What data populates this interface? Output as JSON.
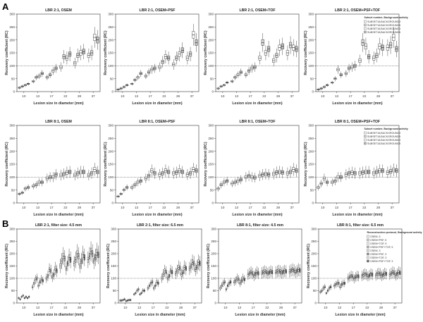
{
  "sections": [
    {
      "label": "A"
    },
    {
      "label": "B"
    }
  ],
  "chart_data": [
    {
      "type": "box",
      "section": "A",
      "title": "LBR 2:1, OSEM",
      "xlabel": "Lesion size in diameter (mm)",
      "ylabel": "Recovery coefficient (RC)",
      "categories": [
        "10",
        "13",
        "17",
        "22",
        "28",
        "37"
      ],
      "ylim": [
        0,
        300
      ],
      "yticks": [
        0,
        50,
        100,
        150,
        200,
        250,
        300
      ],
      "reference_line": 100,
      "series_medians": [
        [
          15,
          20,
          25,
          30
        ],
        [
          40,
          55,
          60,
          70
        ],
        [
          55,
          65,
          80,
          90
        ],
        [
          95,
          135,
          130,
          145
        ],
        [
          110,
          140,
          150,
          155
        ],
        [
          140,
          150,
          210,
          200
        ]
      ]
    },
    {
      "type": "box",
      "section": "A",
      "title": "LBR 2:1, OSEM+PSF",
      "xlabel": "Lesion size in diameter (mm)",
      "ylabel": "Recovery coefficient (RC)",
      "categories": [
        "10",
        "13",
        "17",
        "22",
        "28",
        "37"
      ],
      "ylim": [
        0,
        300
      ],
      "yticks": [
        0,
        50,
        100,
        150,
        200,
        250,
        300
      ],
      "reference_line": 100,
      "series_medians": [
        [
          8,
          12,
          18,
          25
        ],
        [
          30,
          45,
          55,
          70
        ],
        [
          60,
          75,
          85,
          90
        ],
        [
          95,
          115,
          135,
          130
        ],
        [
          105,
          130,
          145,
          160
        ],
        [
          130,
          145,
          220,
          190
        ]
      ]
    },
    {
      "type": "box",
      "section": "A",
      "title": "LBR 2:1, OSEM+TOF",
      "xlabel": "Lesion size in diameter (mm)",
      "ylabel": "Recovery coefficient (RC)",
      "categories": [
        "10",
        "13",
        "17",
        "22",
        "28",
        "37"
      ],
      "ylim": [
        0,
        300
      ],
      "yticks": [
        0,
        50,
        100,
        150,
        200,
        250,
        300
      ],
      "reference_line": 100,
      "series_medians": [
        [
          12,
          20,
          25,
          35
        ],
        [
          40,
          55,
          65,
          75
        ],
        [
          65,
          80,
          90,
          95
        ],
        [
          130,
          190,
          150,
          165
        ],
        [
          120,
          140,
          170,
          175
        ],
        [
          150,
          180,
          170,
          165
        ]
      ]
    },
    {
      "type": "box",
      "section": "A",
      "title": "LBR 2:1, OSEM+PSF+TOF",
      "xlabel": "Lesion size in diameter (mm)",
      "ylabel": "Recovery coefficient (RC)",
      "categories": [
        "10",
        "13",
        "17",
        "22",
        "28",
        "37"
      ],
      "ylim": [
        0,
        300
      ],
      "yticks": [
        0,
        50,
        100,
        150,
        200,
        250,
        300
      ],
      "reference_line": 100,
      "series_medians": [
        [
          8,
          12,
          18,
          25
        ],
        [
          35,
          50,
          85,
          65
        ],
        [
          70,
          90,
          95,
          100
        ],
        [
          120,
          190,
          175,
          135
        ],
        [
          130,
          140,
          175,
          170
        ],
        [
          170,
          180,
          210,
          165
        ]
      ],
      "legend_title": "Subset number, Background activity",
      "legend": [
        "SUBSET18,BACKGROUND3",
        "SUBSET18,BACKGROUND5",
        "SUBSET18,BACKGROUND3",
        "SUBSET18,BACKGROUND5"
      ]
    },
    {
      "type": "box",
      "section": "A",
      "title": "LBR 8:1, OSEM",
      "xlabel": "Lesion size in diameter (mm)",
      "ylabel": "Recovery coefficient (RC)",
      "categories": [
        "10",
        "13",
        "17",
        "22",
        "28",
        "37"
      ],
      "ylim": [
        0,
        300
      ],
      "yticks": [
        0,
        50,
        100,
        150,
        200,
        250,
        300
      ],
      "reference_line": 100,
      "series_medians": [
        [
          35,
          40,
          55,
          60
        ],
        [
          65,
          70,
          80,
          80
        ],
        [
          95,
          100,
          100,
          110
        ],
        [
          108,
          112,
          118,
          120
        ],
        [
          108,
          115,
          120,
          120
        ],
        [
          108,
          115,
          130,
          120
        ]
      ]
    },
    {
      "type": "box",
      "section": "A",
      "title": "LBR 8:1, OSEM+PSF",
      "xlabel": "Lesion size in diameter (mm)",
      "ylabel": "Recovery coefficient (RC)",
      "categories": [
        "10",
        "13",
        "17",
        "22",
        "28",
        "37"
      ],
      "ylim": [
        0,
        300
      ],
      "yticks": [
        0,
        50,
        100,
        150,
        200,
        250,
        300
      ],
      "reference_line": 100,
      "series_medians": [
        [
          25,
          35,
          50,
          60
        ],
        [
          60,
          70,
          80,
          85
        ],
        [
          95,
          105,
          125,
          115
        ],
        [
          110,
          115,
          125,
          120
        ],
        [
          115,
          118,
          125,
          120
        ],
        [
          110,
          115,
          130,
          125
        ]
      ]
    },
    {
      "type": "box",
      "section": "A",
      "title": "LBR 8:1, OSEM+TOF",
      "xlabel": "Lesion size in diameter (mm)",
      "ylabel": "Recovery coefficient (RC)",
      "categories": [
        "10",
        "13",
        "17",
        "22",
        "28",
        "37"
      ],
      "ylim": [
        0,
        300
      ],
      "yticks": [
        0,
        50,
        100,
        150,
        200,
        250,
        300
      ],
      "reference_line": 100,
      "series_medians": [
        [
          55,
          70,
          80,
          85
        ],
        [
          75,
          80,
          85,
          90
        ],
        [
          100,
          105,
          100,
          98
        ],
        [
          105,
          110,
          112,
          110
        ],
        [
          112,
          118,
          120,
          118
        ],
        [
          115,
          120,
          130,
          125
        ]
      ]
    },
    {
      "type": "box",
      "section": "A",
      "title": "LBR 8:1, OSEM+PSF+TOF",
      "xlabel": "Lesion size in diameter (mm)",
      "ylabel": "Recovery coefficient (RC)",
      "categories": [
        "10",
        "13",
        "17",
        "22",
        "28",
        "37"
      ],
      "ylim": [
        0,
        300
      ],
      "yticks": [
        0,
        50,
        100,
        150,
        200,
        250,
        300
      ],
      "reference_line": 100,
      "series_medians": [
        [
          60,
          75,
          95,
          80
        ],
        [
          80,
          85,
          100,
          100
        ],
        [
          110,
          115,
          118,
          115
        ],
        [
          115,
          118,
          120,
          120
        ],
        [
          115,
          120,
          125,
          125
        ],
        [
          118,
          122,
          128,
          125
        ]
      ],
      "legend_title": "Subset number, Background activity",
      "legend": [
        "SUBSET18,BACKGROUND3",
        "SUBSET18,BACKGROUND5",
        "SUBSET18,BACKGROUND3",
        "SUBSET18,BACKGROUND5"
      ]
    },
    {
      "type": "box",
      "section": "B",
      "title": "LBR 2:1, filter size: 4.5 mm",
      "xlabel": "Lesion size in diameter (mm)",
      "ylabel": "Recovery coefficient (RC)",
      "categories": [
        "10",
        "13",
        "17",
        "22",
        "28",
        "37"
      ],
      "ylim": [
        0,
        300
      ],
      "yticks": [
        0,
        50,
        100,
        150,
        200,
        250,
        300
      ],
      "reference_line": 100,
      "series_medians": [
        [
          20,
          15,
          25,
          30,
          20,
          25,
          20,
          25
        ],
        [
          65,
          80,
          95,
          100,
          70,
          85,
          95,
          90
        ],
        [
          100,
          110,
          135,
          130,
          105,
          115,
          140,
          130
        ],
        [
          150,
          170,
          190,
          180,
          140,
          160,
          185,
          175
        ],
        [
          160,
          175,
          200,
          190,
          150,
          170,
          195,
          185
        ],
        [
          175,
          190,
          210,
          200,
          170,
          185,
          205,
          195
        ]
      ]
    },
    {
      "type": "box",
      "section": "B",
      "title": "LBR 2:1, filter size: 6.5 mm",
      "xlabel": "Lesion size in diameter (mm)",
      "ylabel": "Recovery coefficient (RC)",
      "categories": [
        "10",
        "13",
        "17",
        "22",
        "28",
        "37"
      ],
      "ylim": [
        0,
        300
      ],
      "yticks": [
        0,
        50,
        100,
        150,
        200,
        250,
        300
      ],
      "reference_line": 100,
      "series_medians": [
        [
          10,
          10,
          12,
          15,
          8,
          10,
          12,
          12
        ],
        [
          35,
          40,
          50,
          55,
          35,
          40,
          50,
          50
        ],
        [
          60,
          70,
          80,
          85,
          60,
          70,
          85,
          80
        ],
        [
          100,
          115,
          130,
          125,
          100,
          110,
          130,
          125
        ],
        [
          120,
          130,
          145,
          140,
          115,
          125,
          145,
          140
        ],
        [
          140,
          150,
          165,
          160,
          135,
          145,
          165,
          160
        ]
      ]
    },
    {
      "type": "box",
      "section": "B",
      "title": "LBR 8:1, filter size: 4.5 mm",
      "xlabel": "Lesion size in diameter (mm)",
      "ylabel": "Recovery coefficient (RC)",
      "categories": [
        "10",
        "13",
        "17",
        "22",
        "28",
        "37"
      ],
      "ylim": [
        0,
        300
      ],
      "yticks": [
        0,
        50,
        100,
        150,
        200,
        250,
        300
      ],
      "reference_line": 100,
      "series_medians": [
        [
          60,
          70,
          80,
          85,
          55,
          70,
          80,
          85
        ],
        [
          85,
          90,
          100,
          95,
          80,
          90,
          100,
          95
        ],
        [
          115,
          120,
          125,
          120,
          110,
          118,
          125,
          120
        ],
        [
          122,
          125,
          128,
          125,
          120,
          124,
          128,
          125
        ],
        [
          125,
          128,
          130,
          128,
          122,
          126,
          130,
          128
        ],
        [
          128,
          132,
          135,
          132,
          125,
          130,
          135,
          132
        ]
      ]
    },
    {
      "type": "box",
      "section": "B",
      "title": "LBR 8:1, filter size: 6.5 mm",
      "xlabel": "Lesion size in diameter (mm)",
      "ylabel": "Recovery coefficient (RC)",
      "categories": [
        "10",
        "13",
        "17",
        "22",
        "28",
        "37"
      ],
      "ylim": [
        0,
        300
      ],
      "yticks": [
        0,
        50,
        100,
        150,
        200,
        250,
        300
      ],
      "reference_line": 100,
      "series_medians": [
        [
          45,
          50,
          60,
          65,
          40,
          50,
          60,
          65
        ],
        [
          70,
          75,
          80,
          80,
          65,
          75,
          80,
          80
        ],
        [
          100,
          105,
          110,
          108,
          98,
          105,
          110,
          108
        ],
        [
          110,
          115,
          118,
          115,
          108,
          112,
          118,
          115
        ],
        [
          112,
          118,
          120,
          118,
          110,
          115,
          120,
          118
        ],
        [
          115,
          120,
          125,
          122,
          112,
          118,
          125,
          122
        ]
      ],
      "legend_title": "Reconstruction protocol, Background activity",
      "legend": [
        "OSEM, 5",
        "OSEM+PSF, 5",
        "OSEM+TOF, 5",
        "OSEM+PSF+TOF, 5",
        "OSEM, 3",
        "OSEM+PSF, 3",
        "OSEM+TOF, 3",
        "OSEM+PSF+TOF, 3"
      ]
    }
  ]
}
